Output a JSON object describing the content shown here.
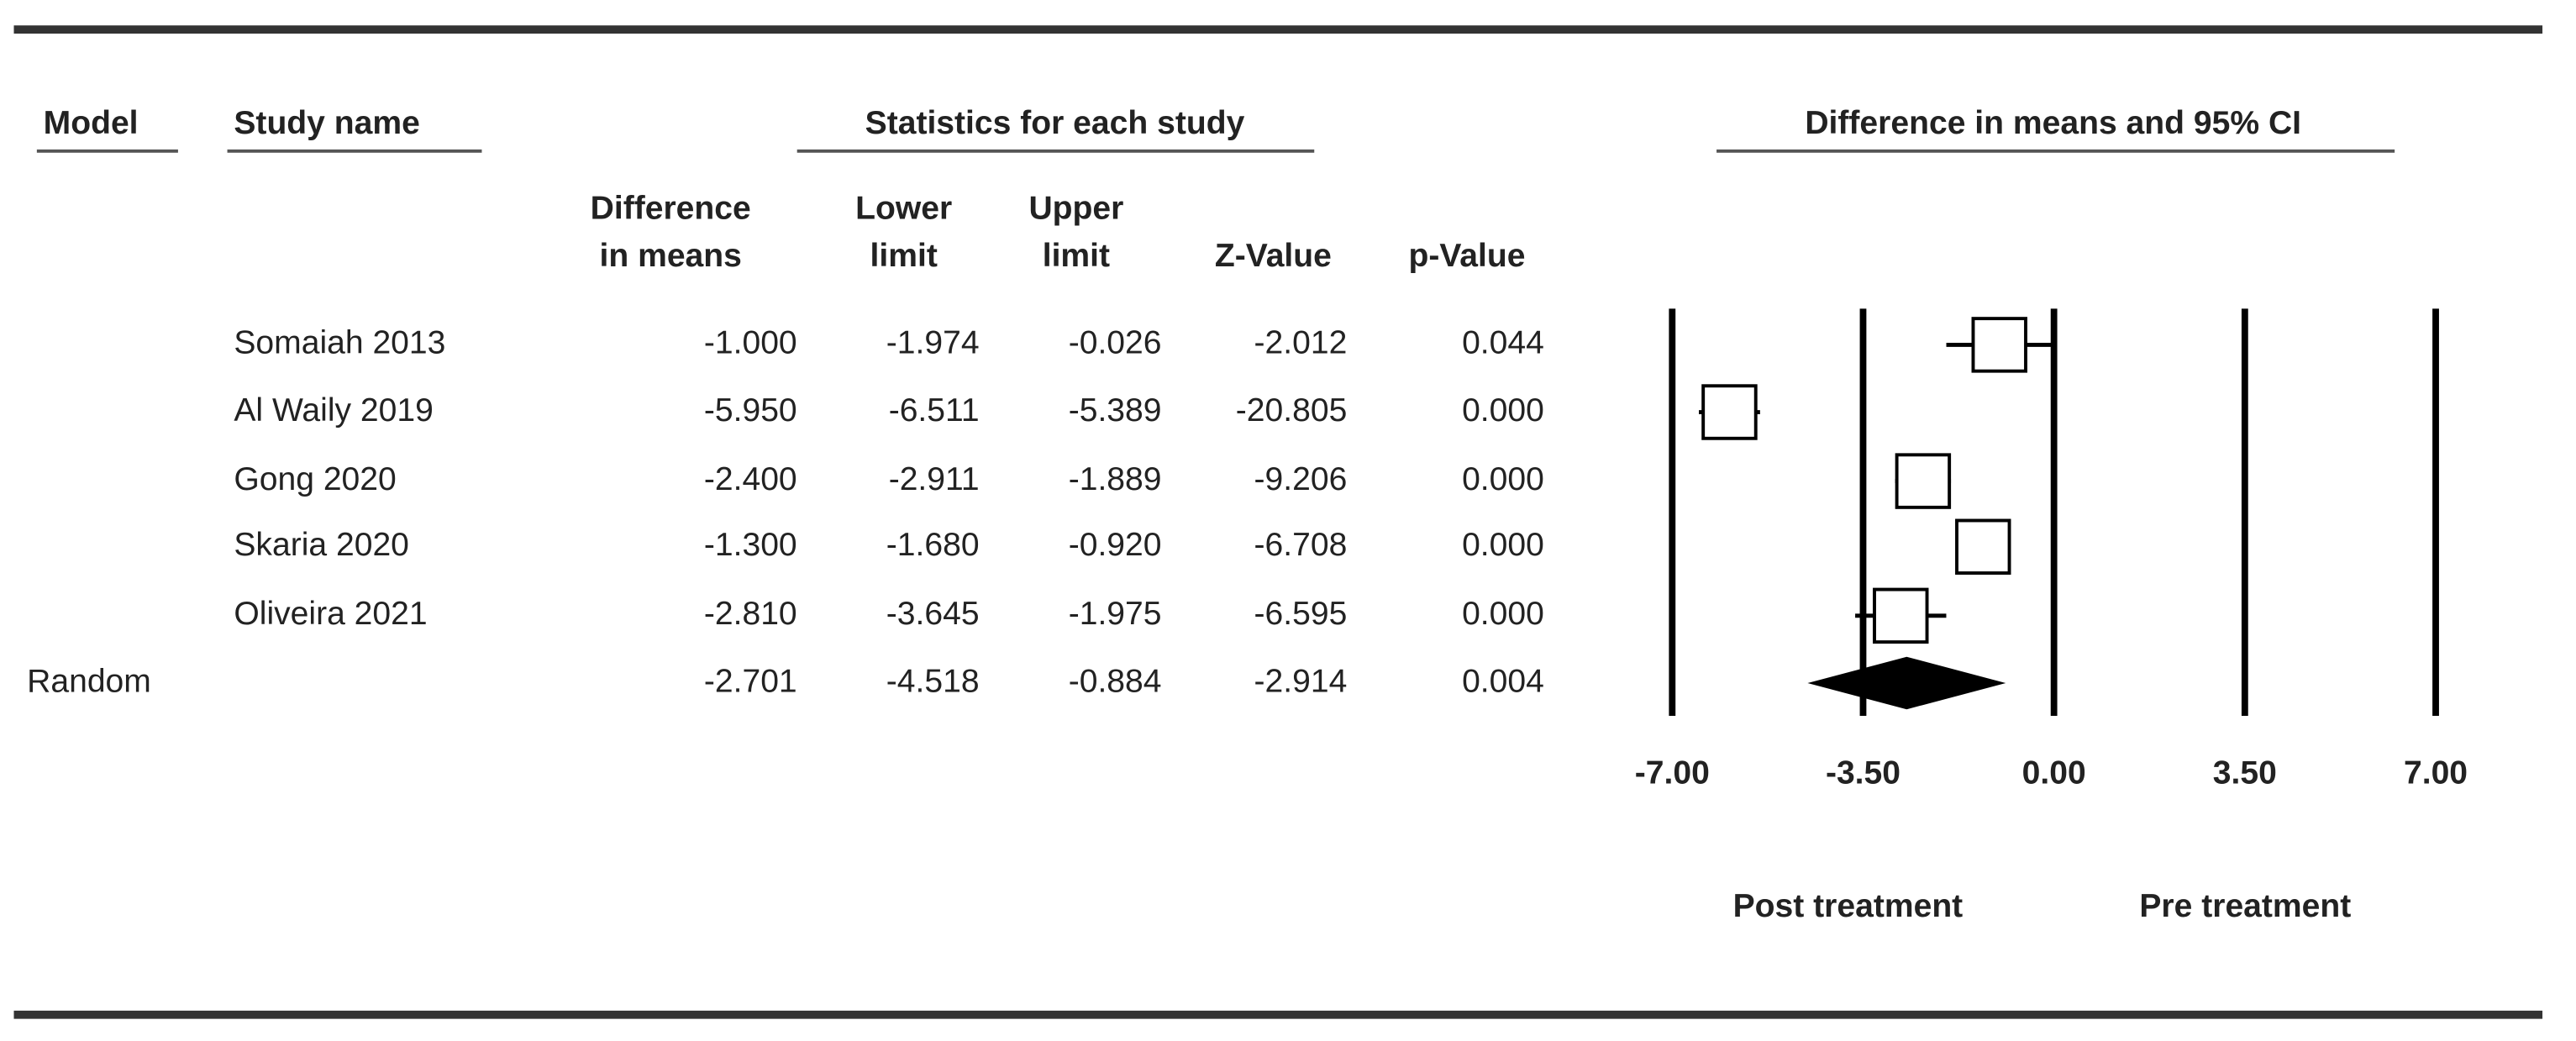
{
  "chart_data": {
    "type": "forest",
    "headers": {
      "model": "Model",
      "study": "Study name",
      "stats": "Statistics for each study",
      "plot": "Difference in means and 95% CI"
    },
    "categories": [
      "Somaiah 2013",
      "Al Waily 2019",
      "Gong 2020",
      "Skaria 2020",
      "Oliveira 2021"
    ],
    "columns": [
      {
        "header": [
          "Difference",
          "in means"
        ],
        "values": [
          -1.0,
          -5.95,
          -2.4,
          -1.3,
          -2.81
        ],
        "value_labels": [
          "-1.000",
          "-5.950",
          "-2.400",
          "-1.300",
          "-2.810"
        ]
      },
      {
        "header": [
          "Lower",
          "limit"
        ],
        "values": [
          -1.974,
          -6.511,
          -2.911,
          -1.68,
          -3.645
        ],
        "value_labels": [
          "-1.974",
          "-6.511",
          "-2.911",
          "-1.680",
          "-3.645"
        ]
      },
      {
        "header": [
          "Upper",
          "limit"
        ],
        "values": [
          -0.026,
          -5.389,
          -1.889,
          -0.92,
          -1.975
        ],
        "value_labels": [
          "-0.026",
          "-5.389",
          "-1.889",
          "-0.920",
          "-1.975"
        ]
      },
      {
        "header": [
          "Z-Value"
        ],
        "values": [
          -2.012,
          -20.805,
          -9.206,
          -6.708,
          -6.595
        ],
        "value_labels": [
          "-2.012",
          "-20.805",
          "-9.206",
          "-6.708",
          "-6.595"
        ]
      },
      {
        "header": [
          "p-Value"
        ],
        "values": [
          0.044,
          0.0,
          0.0,
          0.0,
          0.0
        ],
        "value_labels": [
          "0.044",
          "0.000",
          "0.000",
          "0.000",
          "0.000"
        ]
      }
    ],
    "summary": {
      "label": "Random",
      "values": [
        -2.701,
        -4.518,
        -0.884,
        -2.914,
        0.004
      ],
      "value_labels": [
        "-2.701",
        "-4.518",
        "-0.884",
        "-2.914",
        "0.004"
      ]
    },
    "xlim": [
      -7,
      7
    ],
    "xticks": [
      {
        "value": -7,
        "label": "-7.00"
      },
      {
        "value": -3.5,
        "label": "-3.50"
      },
      {
        "value": 0,
        "label": "0.00"
      },
      {
        "value": 3.5,
        "label": "3.50"
      },
      {
        "value": 7,
        "label": "7.00"
      }
    ],
    "x_side_labels": [
      "Post treatment",
      "Pre treatment"
    ],
    "marker_color": "#ffffff",
    "line_color": "#000000"
  }
}
